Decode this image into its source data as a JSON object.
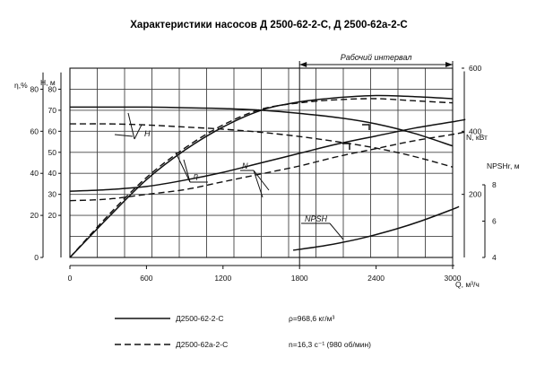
{
  "chart_data": {
    "type": "line",
    "title": "Характеристики насосов Д 2500-62-2-С, Д 2500-62а-2-С",
    "working_interval_label": "Рабочий интервал",
    "working_interval_x": [
      1800,
      3000
    ],
    "x": {
      "label": "Q, м³/ч",
      "ticks": [
        0,
        600,
        1200,
        1800,
        2400,
        3000
      ],
      "range": [
        0,
        3000
      ]
    },
    "axes": {
      "eta": {
        "label": "η,%",
        "ticks": [
          0,
          20,
          40,
          60,
          80
        ],
        "range": [
          0,
          90
        ]
      },
      "H": {
        "label": "H, м",
        "ticks": [
          20,
          30,
          40,
          50,
          60,
          70,
          80
        ],
        "range": [
          0,
          90
        ]
      },
      "N": {
        "label": "N, кВт",
        "ticks": [
          200,
          400,
          600
        ],
        "range": [
          0,
          600
        ]
      },
      "NPSH": {
        "label": "NPSHr, м",
        "ticks": [
          4,
          6,
          8
        ],
        "range": [
          4,
          8
        ]
      }
    },
    "curve_labels": {
      "H": "H",
      "eta": "η",
      "N": "N",
      "NPSH": "NPSH"
    },
    "series": [
      {
        "name": "Д2500-62-2-С",
        "quantity": "H",
        "style": "solid",
        "x": [
          0,
          300,
          600,
          900,
          1200,
          1500,
          1800,
          2100,
          2400,
          2700,
          3000
        ],
        "y": [
          71.5,
          71.5,
          71.5,
          71.2,
          70.8,
          70,
          68.5,
          66.5,
          63.5,
          59,
          53
        ]
      },
      {
        "name": "Д2500-62а-2-С",
        "quantity": "H",
        "style": "dash",
        "x": [
          0,
          300,
          600,
          900,
          1200,
          1500,
          1800,
          2100,
          2400,
          2700,
          3000
        ],
        "y": [
          63.5,
          63.5,
          63,
          62,
          61,
          59.5,
          57.5,
          55,
          52,
          48,
          43
        ]
      },
      {
        "name": "Д2500-62-2-С",
        "quantity": "eta",
        "style": "solid",
        "x": [
          0,
          300,
          600,
          900,
          1200,
          1500,
          1800,
          2100,
          2400,
          2700,
          3000
        ],
        "y": [
          0,
          19,
          37,
          51,
          62,
          70,
          74,
          76,
          77,
          76.5,
          75.5
        ]
      },
      {
        "name": "Д2500-62а-2-С",
        "quantity": "eta",
        "style": "dash",
        "x": [
          0,
          300,
          600,
          900,
          1200,
          1500,
          1800,
          2100,
          2400,
          2700,
          3000
        ],
        "y": [
          0,
          20,
          38,
          52,
          63,
          70.5,
          73.5,
          75,
          75.5,
          74.5,
          73.5
        ]
      },
      {
        "name": "Д2500-62-2-С",
        "quantity": "N",
        "style": "solid",
        "x": [
          0,
          300,
          600,
          900,
          1200,
          1500,
          1800,
          2100,
          2400,
          2700,
          3000,
          3100
        ],
        "y": [
          210,
          215,
          225,
          245,
          270,
          300,
          330,
          360,
          385,
          410,
          430,
          437
        ]
      },
      {
        "name": "Д2500-62а-2-С",
        "quantity": "N",
        "style": "dash",
        "x": [
          0,
          300,
          600,
          900,
          1200,
          1500,
          1800,
          2100,
          2400,
          2700,
          3000,
          3100
        ],
        "y": [
          180,
          185,
          200,
          215,
          240,
          265,
          290,
          320,
          345,
          370,
          390,
          398
        ]
      },
      {
        "name": "Д2500-62-2-С",
        "quantity": "NPSH",
        "style": "solid",
        "x": [
          1750,
          2000,
          2250,
          2500,
          2750,
          3000,
          3050
        ],
        "y": [
          4.4,
          4.65,
          5.0,
          5.45,
          6.0,
          6.65,
          6.8
        ]
      }
    ]
  },
  "legend": [
    {
      "label": "Д2500-62-2-С",
      "style": "solid"
    },
    {
      "label": "Д2500-62а-2-С",
      "style": "dash"
    }
  ],
  "notes": {
    "density": "ρ=968,6 кг/м³",
    "speed": "n=16,3 с⁻¹ (980 об/мин)"
  }
}
